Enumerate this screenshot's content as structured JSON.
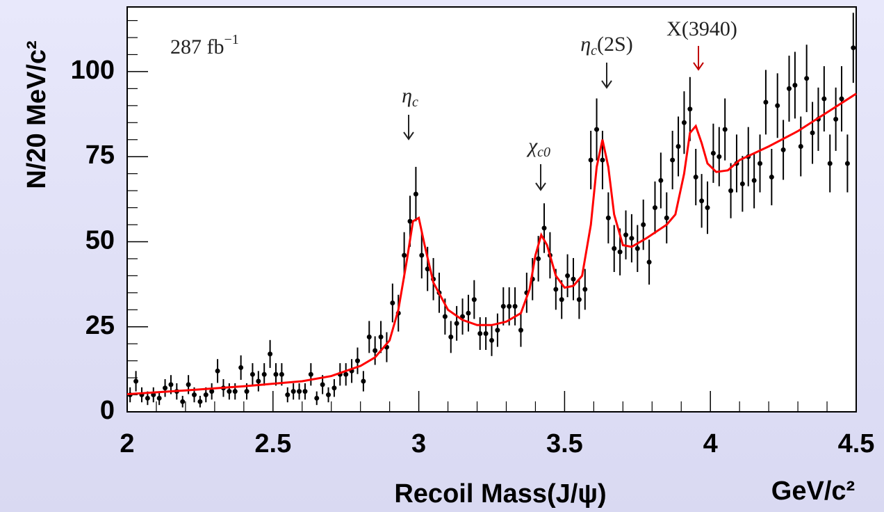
{
  "chart_data": {
    "type": "scatter",
    "y_label": "N/20 MeV/c²",
    "x_label": "Recoil Mass(J/ψ)",
    "x_unit": "GeV/c²",
    "xlim": [
      2,
      4.5
    ],
    "ylim": [
      0,
      119
    ],
    "xticks": [
      2,
      2.5,
      3,
      3.5,
      4,
      4.5
    ],
    "yticks": [
      0,
      25,
      50,
      75,
      100
    ],
    "xminorticks": [
      2.1,
      2.2,
      2.3,
      2.4,
      2.6,
      2.7,
      2.8,
      2.9,
      3.1,
      3.2,
      3.3,
      3.4,
      3.6,
      3.7,
      3.8,
      3.9,
      4.1,
      4.2,
      4.3,
      4.4
    ],
    "yminorticks": [
      5,
      10,
      15,
      20,
      30,
      35,
      40,
      45,
      55,
      60,
      65,
      70,
      80,
      85,
      90,
      95,
      105,
      110,
      115
    ],
    "annotations": [
      {
        "text": "287 fb",
        "sup": "−1"
      },
      {
        "text": "η",
        "sub": "c"
      },
      {
        "text": "χ",
        "sub": "c0"
      },
      {
        "text": "η",
        "sub": "c",
        "after": "(2S)"
      },
      {
        "text": "X(3940)",
        "color": "#c00000"
      }
    ],
    "points": {
      "color": "#000000",
      "x": [
        2.01,
        2.03,
        2.05,
        2.07,
        2.09,
        2.11,
        2.13,
        2.15,
        2.17,
        2.19,
        2.21,
        2.23,
        2.25,
        2.27,
        2.29,
        2.31,
        2.33,
        2.35,
        2.37,
        2.39,
        2.41,
        2.43,
        2.45,
        2.47,
        2.49,
        2.51,
        2.53,
        2.55,
        2.57,
        2.59,
        2.61,
        2.63,
        2.65,
        2.67,
        2.69,
        2.71,
        2.73,
        2.75,
        2.77,
        2.79,
        2.81,
        2.83,
        2.85,
        2.87,
        2.89,
        2.91,
        2.93,
        2.95,
        2.97,
        2.99,
        3.01,
        3.03,
        3.05,
        3.07,
        3.09,
        3.11,
        3.13,
        3.15,
        3.17,
        3.19,
        3.21,
        3.23,
        3.25,
        3.27,
        3.29,
        3.31,
        3.33,
        3.35,
        3.37,
        3.39,
        3.41,
        3.43,
        3.45,
        3.47,
        3.49,
        3.51,
        3.53,
        3.55,
        3.57,
        3.59,
        3.61,
        3.63,
        3.65,
        3.67,
        3.69,
        3.71,
        3.73,
        3.75,
        3.77,
        3.79,
        3.81,
        3.83,
        3.85,
        3.87,
        3.89,
        3.91,
        3.93,
        3.95,
        3.97,
        3.99,
        4.01,
        4.03,
        4.05,
        4.07,
        4.09,
        4.11,
        4.13,
        4.15,
        4.17,
        4.19,
        4.21,
        4.23,
        4.25,
        4.27,
        4.29,
        4.31,
        4.33,
        4.35,
        4.37,
        4.39,
        4.41,
        4.43,
        4.45,
        4.47,
        4.49
      ],
      "values": [
        5,
        9,
        5,
        4,
        5,
        4,
        7,
        8,
        6,
        3,
        8,
        5,
        3,
        5,
        6,
        12,
        7,
        6,
        6,
        13,
        6,
        11,
        9,
        11,
        17,
        11,
        11,
        5,
        6,
        6,
        6,
        11,
        4,
        8,
        5,
        7,
        11,
        11,
        12,
        15,
        9,
        22,
        18,
        22,
        19,
        32,
        29,
        46,
        56,
        64,
        46,
        42,
        39,
        35,
        28,
        22,
        26,
        28,
        29,
        33,
        23,
        23,
        21,
        24,
        31,
        31,
        31,
        24,
        35,
        39,
        45,
        54,
        46,
        36,
        33,
        40,
        39,
        33,
        36,
        74,
        83,
        74,
        57,
        48,
        47,
        52,
        51,
        48,
        55,
        44,
        60,
        68,
        57,
        74,
        78,
        85,
        89,
        69,
        62,
        60,
        76,
        75,
        83,
        65,
        73,
        67,
        75,
        68,
        73,
        91,
        69,
        90,
        77,
        95,
        96,
        78,
        98,
        82,
        86,
        92,
        73,
        86,
        92,
        73,
        107
      ],
      "errors": [
        2.2,
        3,
        2.2,
        2,
        2.2,
        2,
        2.6,
        2.8,
        2.4,
        1.7,
        2.8,
        2.2,
        1.7,
        2.2,
        2.4,
        3.5,
        2.6,
        2.4,
        2.4,
        3.6,
        2.4,
        3.3,
        3,
        3.3,
        4.1,
        3.3,
        3.3,
        2.2,
        2.4,
        2.4,
        2.4,
        3.3,
        2,
        2.8,
        2.2,
        2.6,
        3.3,
        3.3,
        3.5,
        3.9,
        3,
        4.7,
        4.2,
        4.7,
        4.4,
        5.7,
        5.4,
        6.8,
        7.5,
        8,
        6.8,
        6.5,
        6.2,
        5.9,
        5.3,
        4.7,
        5.1,
        5.3,
        5.4,
        5.7,
        4.8,
        4.8,
        4.6,
        4.9,
        5.6,
        5.6,
        5.6,
        4.9,
        5.9,
        6.2,
        6.7,
        7.3,
        6.8,
        6,
        5.7,
        6.3,
        6.2,
        5.7,
        6,
        8.6,
        9.1,
        8.6,
        7.5,
        6.9,
        6.9,
        7.2,
        7.1,
        6.9,
        7.4,
        6.6,
        7.7,
        8.2,
        7.5,
        8.6,
        8.8,
        9.2,
        9.4,
        8.3,
        7.9,
        7.7,
        8.7,
        8.7,
        9.1,
        8.1,
        8.5,
        8.2,
        8.7,
        8.2,
        8.5,
        9.5,
        8.3,
        9.5,
        8.8,
        9.7,
        9.8,
        8.8,
        9.9,
        9.1,
        9.3,
        9.6,
        8.5,
        9.3,
        9.6,
        8.5,
        10.3
      ]
    },
    "fit": {
      "color": "#ff0000",
      "x": [
        2.0,
        2.2,
        2.4,
        2.6,
        2.7,
        2.8,
        2.85,
        2.9,
        2.93,
        2.96,
        2.98,
        3.0,
        3.02,
        3.05,
        3.1,
        3.15,
        3.2,
        3.25,
        3.3,
        3.35,
        3.38,
        3.4,
        3.42,
        3.44,
        3.47,
        3.5,
        3.53,
        3.56,
        3.59,
        3.61,
        3.63,
        3.65,
        3.67,
        3.7,
        3.73,
        3.78,
        3.85,
        3.88,
        3.91,
        3.93,
        3.95,
        3.97,
        3.99,
        4.02,
        4.06,
        4.1,
        4.2,
        4.3,
        4.4,
        4.5
      ],
      "values": [
        5.2,
        6.3,
        7.5,
        9,
        10.5,
        13.5,
        16,
        21,
        30,
        45,
        56,
        57,
        49,
        38,
        30,
        27,
        25.5,
        25.5,
        26.5,
        29,
        36,
        46,
        52,
        49,
        40,
        36.5,
        37,
        40,
        55,
        72,
        80,
        72,
        58,
        49,
        48.5,
        51,
        55,
        58,
        70,
        82,
        84,
        79,
        73,
        70.5,
        71,
        74,
        78,
        82.5,
        88,
        93.5
      ]
    }
  }
}
